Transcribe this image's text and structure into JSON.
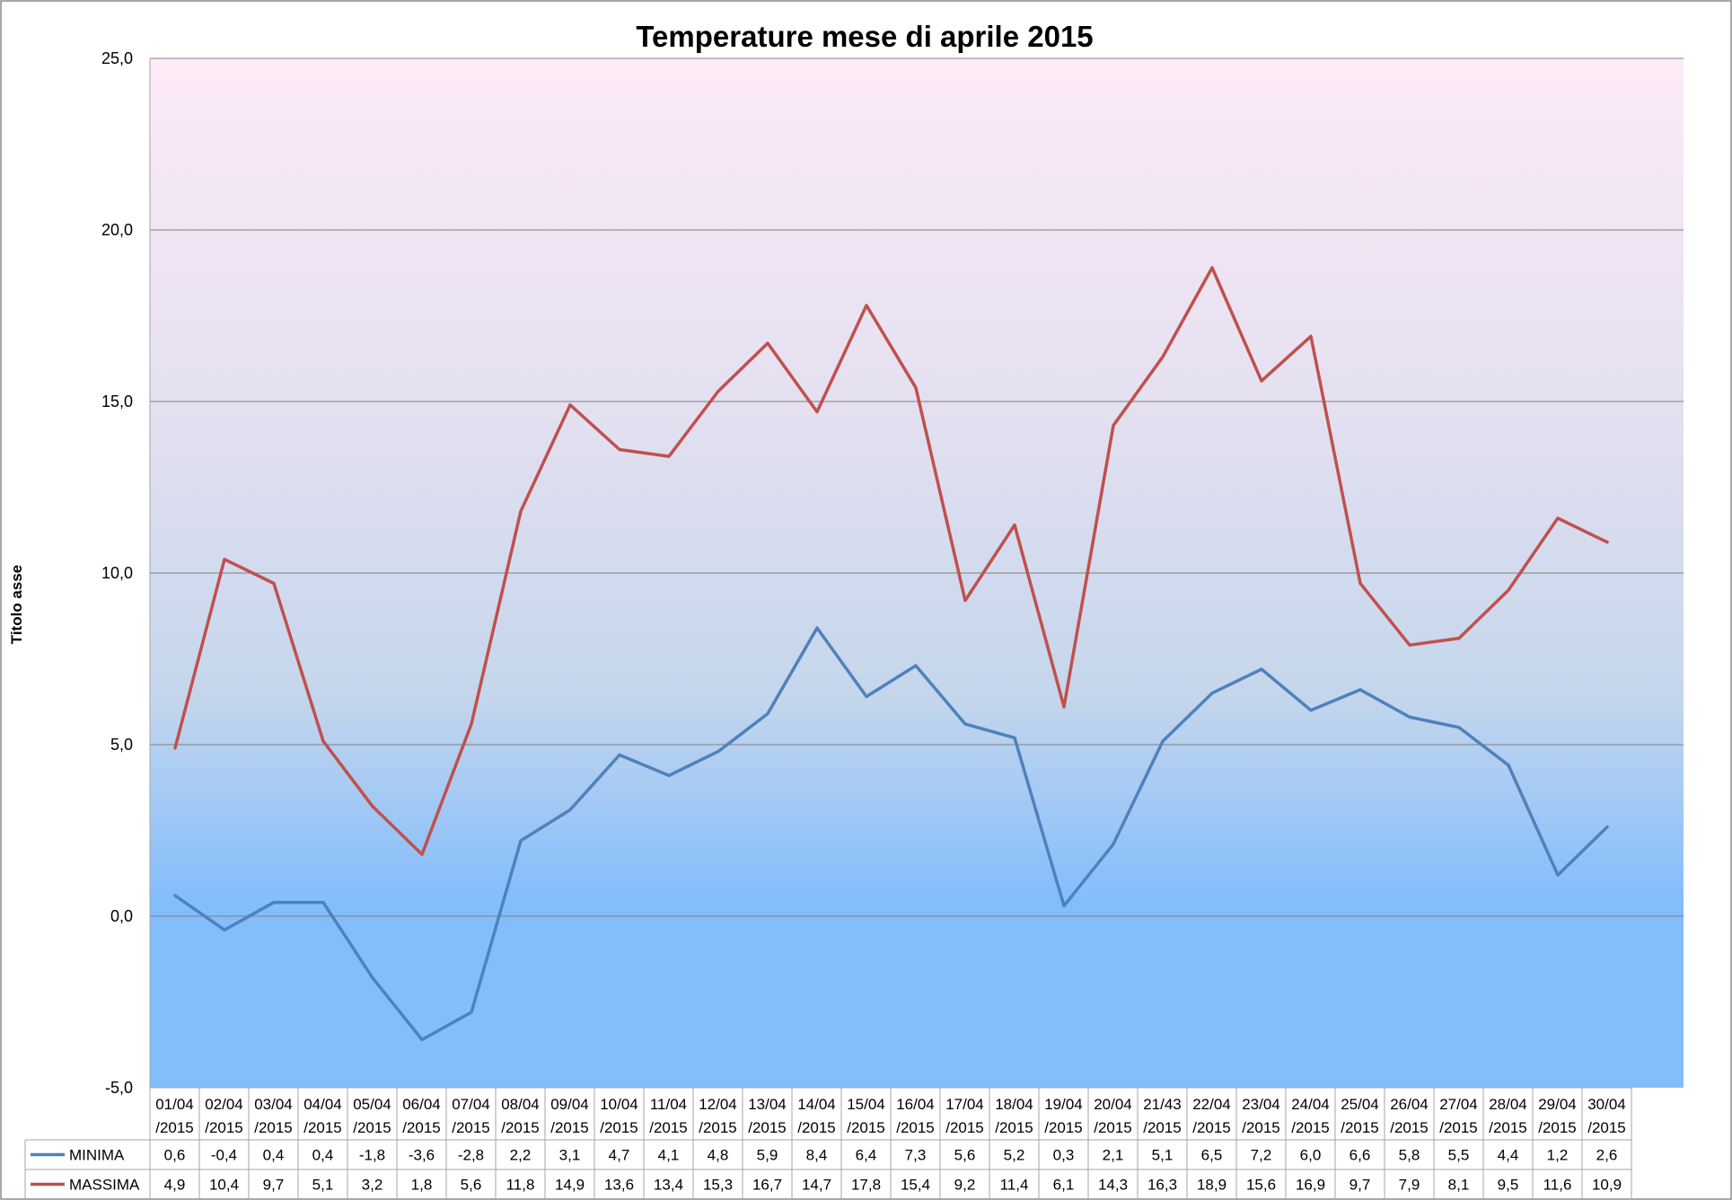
{
  "chart_data": {
    "type": "line",
    "title": "Temperature mese di aprile 2015",
    "xlabel": "",
    "ylabel": "Titolo asse",
    "ylim": [
      -5,
      25
    ],
    "yticks": [
      "-5,0",
      "0,0",
      "5,0",
      "10,0",
      "15,0",
      "20,0",
      "25,0"
    ],
    "grid": true,
    "legend": "data-table",
    "background": "vertical gradient, pink at top to light blue at bottom",
    "categories": [
      "01/04/2015",
      "02/04/2015",
      "03/04/2015",
      "04/04/2015",
      "05/04/2015",
      "06/04/2015",
      "07/04/2015",
      "08/04/2015",
      "09/04/2015",
      "10/04/2015",
      "11/04/2015",
      "12/04/2015",
      "13/04/2015",
      "14/04/2015",
      "15/04/2015",
      "16/04/2015",
      "17/04/2015",
      "18/04/2015",
      "19/04/2015",
      "20/04/2015",
      "21/43/2015",
      "22/04/2015",
      "23/04/2015",
      "24/04/2015",
      "25/04/2015",
      "26/04/2015",
      "27/04/2015",
      "28/04/2015",
      "29/04/2015",
      "30/04/2015"
    ],
    "series": [
      {
        "name": "MINIMA",
        "color": "#4f81bd",
        "values": [
          0.6,
          -0.4,
          0.4,
          0.4,
          -1.8,
          -3.6,
          -2.8,
          2.2,
          3.1,
          4.7,
          4.1,
          4.8,
          5.9,
          8.4,
          6.4,
          7.3,
          5.6,
          5.2,
          0.3,
          2.1,
          5.1,
          6.5,
          7.2,
          6.0,
          6.6,
          5.8,
          5.5,
          4.4,
          1.2,
          2.6
        ],
        "labels": [
          "0,6",
          "-0,4",
          "0,4",
          "0,4",
          "-1,8",
          "-3,6",
          "-2,8",
          "2,2",
          "3,1",
          "4,7",
          "4,1",
          "4,8",
          "5,9",
          "8,4",
          "6,4",
          "7,3",
          "5,6",
          "5,2",
          "0,3",
          "2,1",
          "5,1",
          "6,5",
          "7,2",
          "6,0",
          "6,6",
          "5,8",
          "5,5",
          "4,4",
          "1,2",
          "2,6"
        ]
      },
      {
        "name": "MASSIMA",
        "color": "#c0504d",
        "values": [
          4.9,
          10.4,
          9.7,
          5.1,
          3.2,
          1.8,
          5.6,
          11.8,
          14.9,
          13.6,
          13.4,
          15.3,
          16.7,
          14.7,
          17.8,
          15.4,
          9.2,
          11.4,
          6.1,
          14.3,
          16.3,
          18.9,
          15.6,
          16.9,
          9.7,
          7.9,
          8.1,
          9.5,
          11.6,
          10.9
        ],
        "labels": [
          "4,9",
          "10,4",
          "9,7",
          "5,1",
          "3,2",
          "1,8",
          "5,6",
          "11,8",
          "14,9",
          "13,6",
          "13,4",
          "15,3",
          "16,7",
          "14,7",
          "17,8",
          "15,4",
          "9,2",
          "11,4",
          "6,1",
          "14,3",
          "16,3",
          "18,9",
          "15,6",
          "16,9",
          "9,7",
          "7,9",
          "8,1",
          "9,5",
          "11,6",
          "10,9"
        ]
      }
    ]
  }
}
